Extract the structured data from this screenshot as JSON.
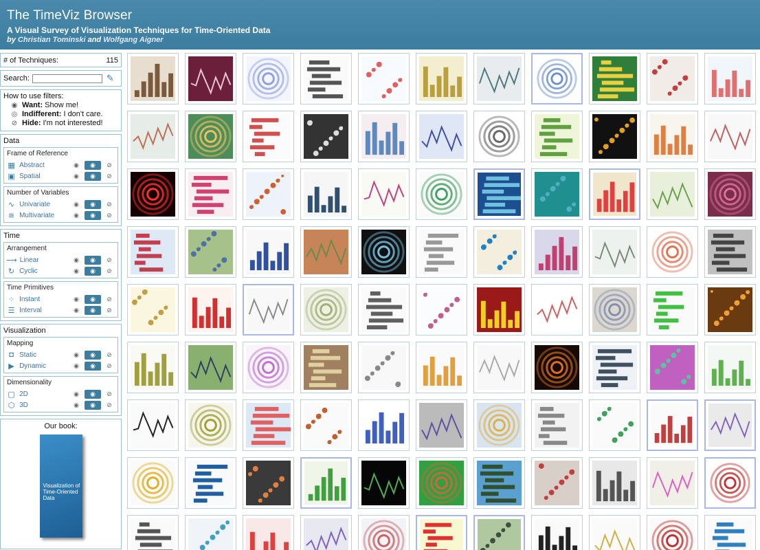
{
  "header": {
    "title": "The TimeViz Browser",
    "subtitle": "A Visual Survey of Visualization Techniques for Time-Oriented Data",
    "by_prefix": "by",
    "author1": "Christian Tominski",
    "and": "and",
    "author2": "Wolfgang Aigner"
  },
  "count": {
    "label": "# of Techniques:",
    "value": "115"
  },
  "search": {
    "label": "Search:",
    "placeholder": ""
  },
  "howto": {
    "title": "How to use filters:",
    "want_b": "Want:",
    "want_t": "Show me!",
    "ind_b": "Indifferent:",
    "ind_t": "I don't care.",
    "hide_b": "Hide:",
    "hide_t": "I'm not interested!"
  },
  "sections": {
    "data": "Data",
    "frame": "Frame of Reference",
    "abstract": "Abstract",
    "spatial": "Spatial",
    "numvars": "Number of Variables",
    "univariate": "Univariate",
    "multivariate": "Multivariate",
    "time": "Time",
    "arrangement": "Arrangement",
    "linear": "Linear",
    "cyclic": "Cyclic",
    "primitives": "Time Primitives",
    "instant": "Instant",
    "interval": "Interval",
    "vis": "Visualization",
    "mapping": "Mapping",
    "static": "Static",
    "dynamic": "Dynamic",
    "dimensionality": "Dimensionality",
    "d2": "2D",
    "d3": "3D"
  },
  "book": {
    "caption": "Our book:",
    "title": "Visualization of Time-Oriented Data"
  },
  "thumbnails": [
    {
      "bg": "#e8ded0",
      "fg": "#7a5a3a"
    },
    {
      "bg": "#6b1f3b",
      "fg": "#e9c8d2"
    },
    {
      "bg": "#f4f6ff",
      "fg": "#8fa0e0"
    },
    {
      "bg": "#fafafa",
      "fg": "#555"
    },
    {
      "bg": "#f7fbff",
      "fg": "#e06060"
    },
    {
      "bg": "#f3eed0",
      "fg": "#b8a040"
    },
    {
      "bg": "#e8ecef",
      "fg": "#4c7a7a"
    },
    {
      "bg": "#fff",
      "fg": "#6a8ec8"
    },
    {
      "bg": "#2f7f3a",
      "fg": "#e8d040"
    },
    {
      "bg": "#f2ece8",
      "fg": "#c04040"
    },
    {
      "bg": "#f0f6fa",
      "fg": "#e07070"
    },
    {
      "bg": "#e6ede8",
      "fg": "#c07050"
    },
    {
      "bg": "#4c8d5a",
      "fg": "#f0c060"
    },
    {
      "bg": "#fbfbfb",
      "fg": "#d05050"
    },
    {
      "bg": "#333",
      "fg": "#ddd"
    },
    {
      "bg": "#f5eef0",
      "fg": "#6088c0"
    },
    {
      "bg": "#dfe6f5",
      "fg": "#4050a0"
    },
    {
      "bg": "#fff",
      "fg": "#666"
    },
    {
      "bg": "#eef5d8",
      "fg": "#60a040"
    },
    {
      "bg": "#111",
      "fg": "#e0a020"
    },
    {
      "bg": "#f8f4ee",
      "fg": "#e08040"
    },
    {
      "bg": "#f8f8f8",
      "fg": "#c06060"
    },
    {
      "bg": "#150000",
      "fg": "#ff3030"
    },
    {
      "bg": "#f8eef2",
      "fg": "#d04070"
    },
    {
      "bg": "#eef2fa",
      "fg": "#d06030"
    },
    {
      "bg": "#f6f6f6",
      "fg": "#305070"
    },
    {
      "bg": "#fafaf4",
      "fg": "#c04080"
    },
    {
      "bg": "#fafafa",
      "fg": "#40a060"
    },
    {
      "bg": "#1c4f8f",
      "fg": "#70c0e0"
    },
    {
      "bg": "#1f8f8f",
      "fg": "#50b0c0"
    },
    {
      "bg": "#efe6cc",
      "fg": "#e04040"
    },
    {
      "bg": "#e8f0dc",
      "fg": "#6aa050"
    },
    {
      "bg": "#7a2e4a",
      "fg": "#e070a0"
    },
    {
      "bg": "#dfe8f5",
      "fg": "#c04050"
    },
    {
      "bg": "#a6c28a",
      "fg": "#5070a0"
    },
    {
      "bg": "#f8f8f8",
      "fg": "#3050a0"
    },
    {
      "bg": "#c68458",
      "fg": "#6a8a4a"
    },
    {
      "bg": "#101010",
      "fg": "#70c0e0"
    },
    {
      "bg": "#fafafa",
      "fg": "#999"
    },
    {
      "bg": "#f4eedf",
      "fg": "#2080c0"
    },
    {
      "bg": "#d8d8ea",
      "fg": "#c04070"
    },
    {
      "bg": "#eef2ee",
      "fg": "#7a8a7a"
    },
    {
      "bg": "#fff",
      "fg": "#e07050"
    },
    {
      "bg": "#c0c0c0",
      "fg": "#444"
    },
    {
      "bg": "#fbf6e0",
      "fg": "#c0a040"
    },
    {
      "bg": "#fdf4f0",
      "fg": "#d03030"
    },
    {
      "bg": "#f8f8f8",
      "fg": "#888"
    },
    {
      "bg": "#eef0e6",
      "fg": "#a0b070"
    },
    {
      "bg": "#fafafa",
      "fg": "#606060"
    },
    {
      "bg": "#fafcfe",
      "fg": "#c06090"
    },
    {
      "bg": "#9a1a1a",
      "fg": "#f0d020"
    },
    {
      "bg": "#fff",
      "fg": "#d06060"
    },
    {
      "bg": "#dcd8d0",
      "fg": "#8090b0"
    },
    {
      "bg": "#fafafa",
      "fg": "#40c040"
    },
    {
      "bg": "#6a3a10",
      "fg": "#f0a030"
    },
    {
      "bg": "#fafaf4",
      "fg": "#a0a040"
    },
    {
      "bg": "#8ab070",
      "fg": "#304060"
    },
    {
      "bg": "#f8f4fa",
      "fg": "#c070d0"
    },
    {
      "bg": "#a08060",
      "fg": "#e0d0a0"
    },
    {
      "bg": "#f8f8f8",
      "fg": "#888"
    },
    {
      "bg": "#fafafa",
      "fg": "#e0a040"
    },
    {
      "bg": "#f8f8f8",
      "fg": "#aaa"
    },
    {
      "bg": "#150a05",
      "fg": "#e07020"
    },
    {
      "bg": "#eef2f6",
      "fg": "#405060"
    },
    {
      "bg": "#c060c0",
      "fg": "#60c0a0"
    },
    {
      "bg": "#f4f8f4",
      "fg": "#60b050"
    },
    {
      "bg": "#fafafa",
      "fg": "#222"
    },
    {
      "bg": "#f6f6ee",
      "fg": "#a0a030"
    },
    {
      "bg": "#dde8f5",
      "fg": "#e06060"
    },
    {
      "bg": "#fafafa",
      "fg": "#c06030"
    },
    {
      "bg": "#fff",
      "fg": "#4060c0"
    },
    {
      "bg": "#bbb",
      "fg": "#6050a0"
    },
    {
      "bg": "#d8e4f0",
      "fg": "#e0b040"
    },
    {
      "bg": "#f2f2f2",
      "fg": "#888"
    },
    {
      "bg": "#fafafa",
      "fg": "#40a060"
    },
    {
      "bg": "#fafafa",
      "fg": "#c04040"
    },
    {
      "bg": "#eaeaea",
      "fg": "#8060c0"
    },
    {
      "bg": "#fafafa",
      "fg": "#e0b020"
    },
    {
      "bg": "#f8fafc",
      "fg": "#2060a0"
    },
    {
      "bg": "#3a3a3a",
      "fg": "#e08040"
    },
    {
      "bg": "#f0f5ea",
      "fg": "#40a040"
    },
    {
      "bg": "#060606",
      "fg": "#50b050"
    },
    {
      "bg": "#30a040",
      "fg": "#e06040"
    },
    {
      "bg": "#5aa0d0",
      "fg": "#305030"
    },
    {
      "bg": "#d8d0c8",
      "fg": "#c04040"
    },
    {
      "bg": "#e8e8e8",
      "fg": "#555"
    },
    {
      "bg": "#f0f0e8",
      "fg": "#e060c0"
    },
    {
      "bg": "#fff",
      "fg": "#c03030"
    },
    {
      "bg": "#fafafa",
      "fg": "#555"
    },
    {
      "bg": "#f0f4f8",
      "fg": "#40a0c0"
    },
    {
      "bg": "#f8e8e8",
      "fg": "#e04040"
    },
    {
      "bg": "#e8e8f0",
      "fg": "#8060c0"
    },
    {
      "bg": "#f0f4f8",
      "fg": "#d06060"
    },
    {
      "bg": "#f8f8d0",
      "fg": "#e03030"
    },
    {
      "bg": "#b0c8a0",
      "fg": "#405040"
    },
    {
      "bg": "#fafafa",
      "fg": "#222"
    },
    {
      "bg": "#fafafa",
      "fg": "#d0b040"
    },
    {
      "bg": "#fafafa",
      "fg": "#c03030"
    },
    {
      "bg": "#fafafa",
      "fg": "#3080c0"
    }
  ]
}
